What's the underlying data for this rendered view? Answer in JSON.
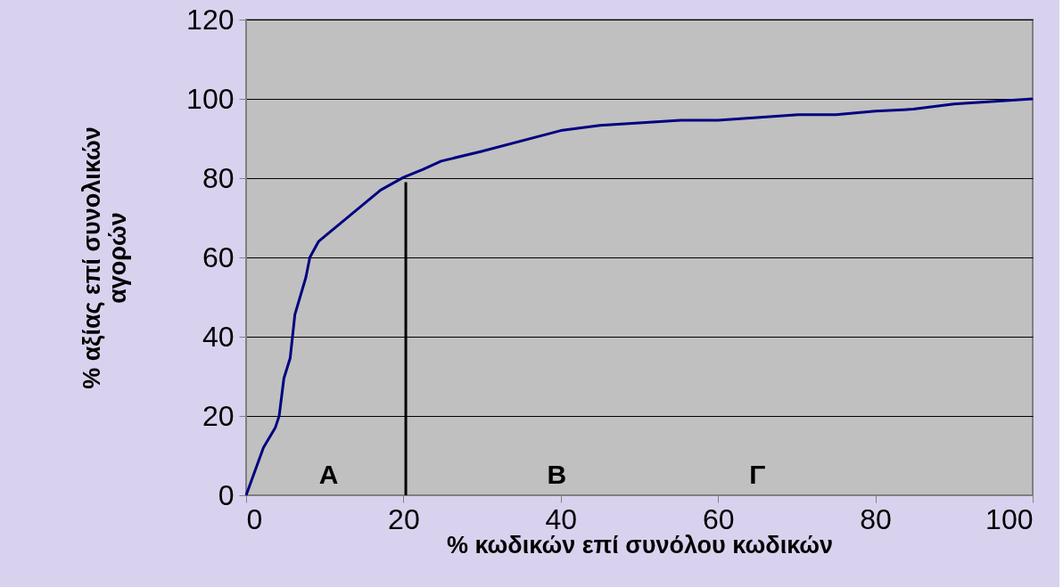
{
  "chart_data": {
    "type": "line",
    "xlabel": "% κωδικών επί συνόλου κωδικών",
    "ylabel": "% αξίας επί συνολικών\nαγορών",
    "series": [
      {
        "color": "#000080",
        "x": [
          0,
          2.2,
          3.7,
          4.2,
          4.8,
          5.6,
          6.2,
          7.6,
          8.1,
          9.2,
          11.8,
          17.1,
          20,
          22.5,
          24.8,
          29.8,
          40,
          45,
          55.3,
          60,
          70.2,
          75,
          80,
          84.8,
          90,
          100
        ],
        "values": [
          0,
          12,
          17,
          20,
          29.5,
          34.6,
          45.6,
          55,
          60,
          64,
          68.3,
          77,
          80.2,
          82.2,
          84.3,
          86.7,
          92,
          93.3,
          94.6,
          94.6,
          96,
          96,
          96.9,
          97.4,
          98.7,
          100
        ]
      },
      {
        "color": "#000000",
        "x": [
          20.3,
          20.3
        ],
        "values": [
          0,
          79
        ]
      }
    ],
    "annotations": [
      "A",
      "B",
      "Γ"
    ],
    "xlim": [
      0,
      100
    ],
    "xticks": [
      0,
      20,
      40,
      60,
      80,
      100
    ],
    "ylim": [
      0,
      120
    ],
    "yticks": [
      0,
      20,
      40,
      60,
      80,
      100,
      120
    ],
    "grid": "y",
    "marker": "none",
    "line_style": "solid"
  }
}
